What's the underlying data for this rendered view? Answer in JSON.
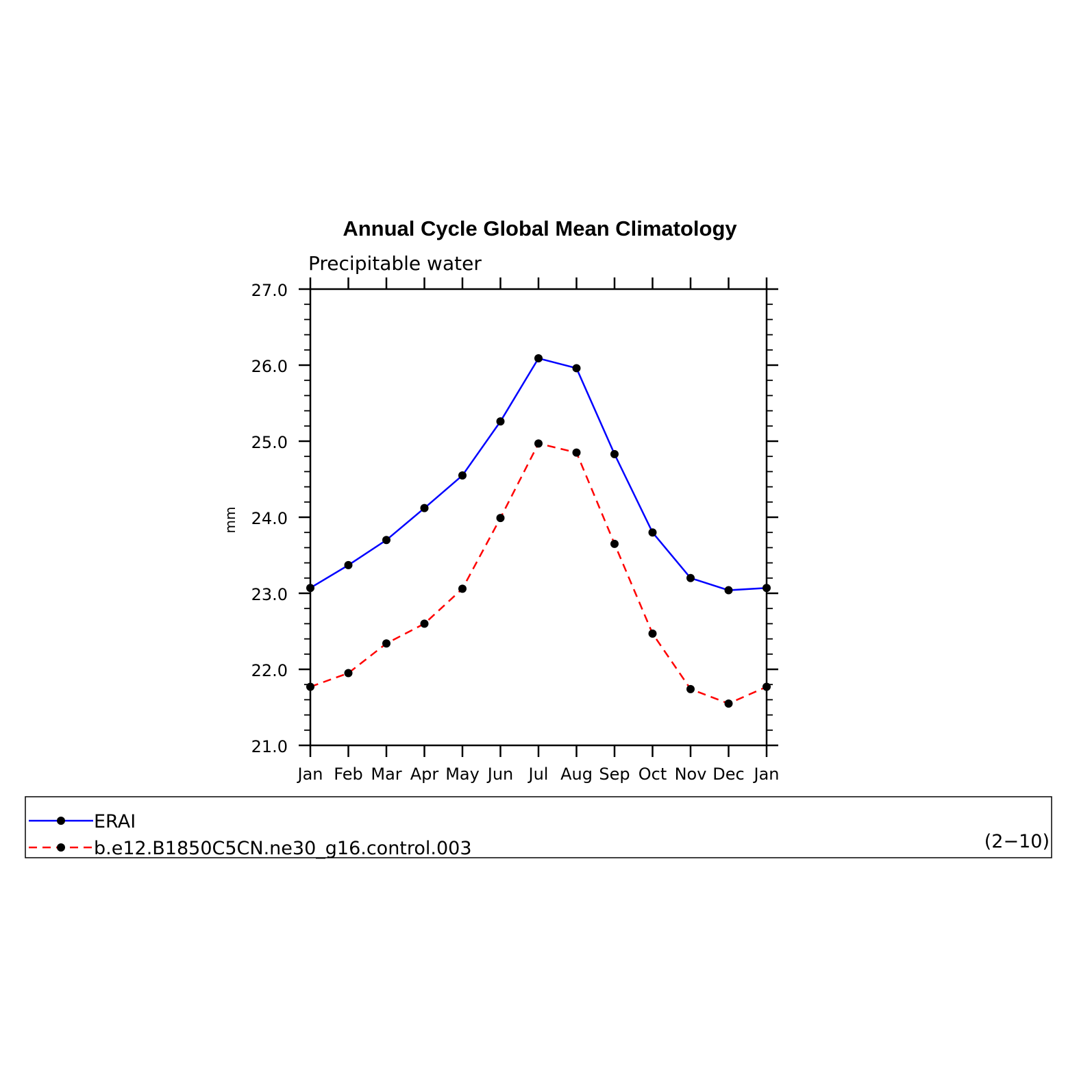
{
  "chart_data": {
    "type": "line",
    "title": "Annual Cycle Global Mean Climatology",
    "subtitle": "Precipitable water",
    "ylabel": "mm",
    "ylim": [
      21.0,
      27.0
    ],
    "yticks": [
      "21.0",
      "22.0",
      "23.0",
      "24.0",
      "25.0",
      "26.0",
      "27.0"
    ],
    "categories": [
      "Jan",
      "Feb",
      "Mar",
      "Apr",
      "May",
      "Jun",
      "Jul",
      "Aug",
      "Sep",
      "Oct",
      "Nov",
      "Dec",
      "Jan"
    ],
    "series": [
      {
        "name": "ERAI",
        "color": "#0000ff",
        "dash": "solid",
        "values": [
          23.07,
          23.37,
          23.7,
          24.12,
          24.55,
          25.26,
          26.09,
          25.96,
          24.83,
          23.8,
          23.2,
          23.04,
          23.07
        ]
      },
      {
        "name": "b.e12.B1850C5CN.ne30_g16.control.003",
        "color": "#ff0000",
        "dash": "dashed",
        "values": [
          21.77,
          21.95,
          22.34,
          22.6,
          23.06,
          23.99,
          24.97,
          24.85,
          23.65,
          22.47,
          21.74,
          21.55,
          21.77
        ]
      }
    ],
    "grid": false,
    "legend_position": "bottom",
    "legend_note": "(2−10)"
  }
}
